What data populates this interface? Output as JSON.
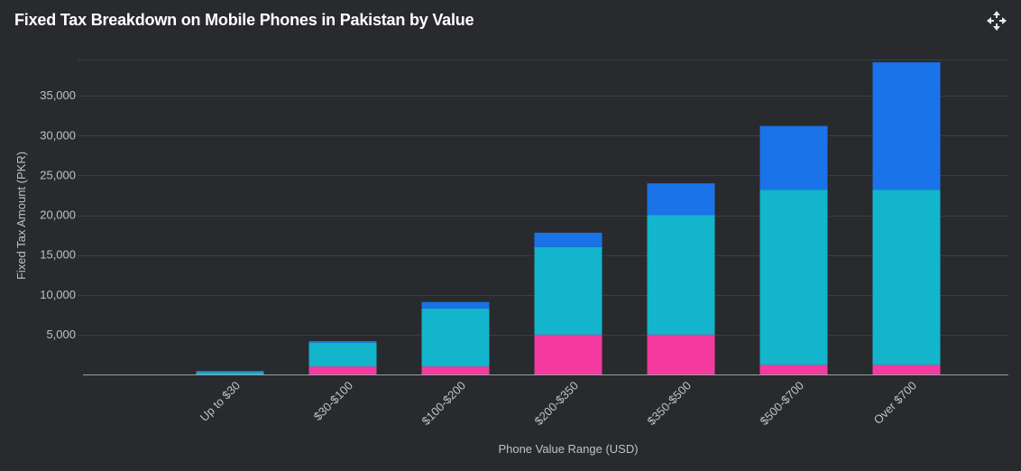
{
  "header": {
    "title": "Fixed Tax Breakdown on Mobile Phones in Pakistan by Value",
    "expand_icon": "fullscreen-arrows-icon"
  },
  "colors": {
    "background": "#292a2d",
    "grid": "#3c3d41",
    "axis": "#9aa0a6",
    "text": "#bdc1c6",
    "series": [
      "#f4399f",
      "#12b5cb",
      "#1a73e8"
    ]
  },
  "chart_data": {
    "type": "bar",
    "stacked": true,
    "categories": [
      "Up to $30",
      "$30-$100",
      "$100-$200",
      "$200-$350",
      "$350-$500",
      "$500-$700",
      "Over $700"
    ],
    "series": [
      {
        "values": [
          0,
          1000,
          1000,
          5000,
          5000,
          1200,
          1200
        ]
      },
      {
        "values": [
          300,
          3000,
          7300,
          11000,
          15000,
          22000,
          22000
        ]
      },
      {
        "values": [
          150,
          200,
          800,
          1800,
          4000,
          8000,
          16000
        ]
      }
    ],
    "xlabel": "Phone Value Range (USD)",
    "ylabel": "Fixed Tax Amount (PKR)",
    "ylim": [
      0,
      40000
    ],
    "yticks": [
      5000,
      10000,
      15000,
      20000,
      25000,
      30000,
      35000
    ],
    "ytick_labels": [
      "5,000",
      "10,000",
      "15,000",
      "20,000",
      "25,000",
      "30,000",
      "35,000"
    ],
    "grid": true,
    "legend": "none"
  }
}
